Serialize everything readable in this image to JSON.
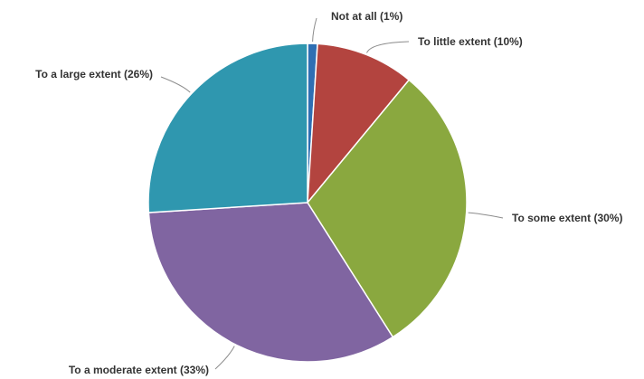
{
  "chart_data": {
    "type": "pie",
    "title": "",
    "start_angle_deg": 0,
    "direction": "clockwise",
    "slices": [
      {
        "category": "Not at all",
        "value": 1,
        "label": "Not at all (1%)",
        "color": "#2f6fb3"
      },
      {
        "category": "To little extent",
        "value": 10,
        "label": "To little extent (10%)",
        "color": "#b3443f"
      },
      {
        "category": "To some extent",
        "value": 30,
        "label": "To some extent (30%)",
        "color": "#8aa83f"
      },
      {
        "category": "To a moderate extent",
        "value": 33,
        "label": "To a moderate extent (33%)",
        "color": "#8065a1"
      },
      {
        "category": "To a large extent",
        "value": 26,
        "label": "To a large extent (26%)",
        "color": "#2f97af"
      }
    ]
  }
}
